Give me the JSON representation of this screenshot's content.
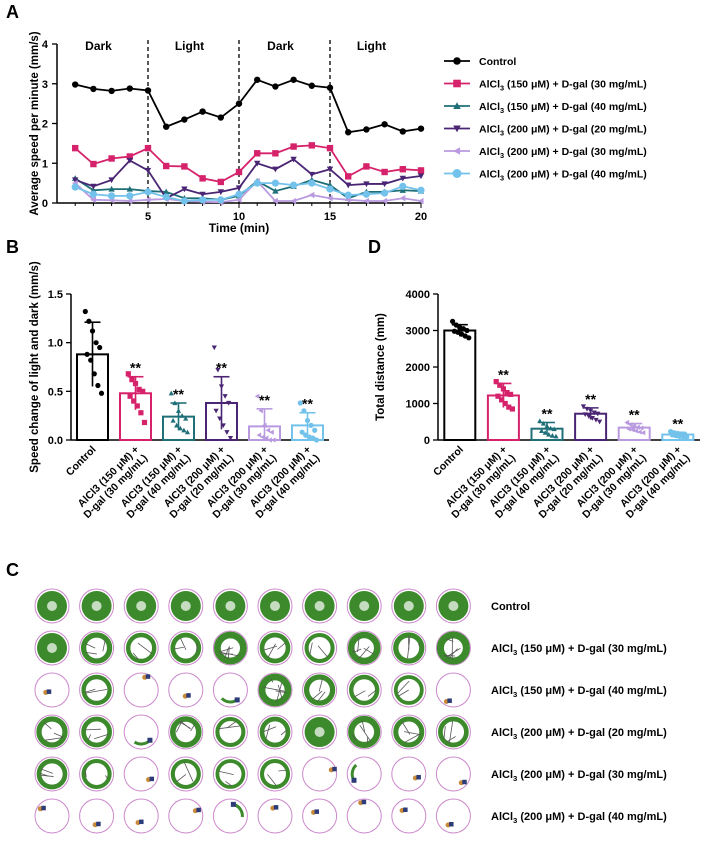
{
  "colors": {
    "control": "#000000",
    "al150_dg30": "#d6226a",
    "al150_dg40": "#1f6f78",
    "al200_dg20": "#4a2574",
    "al200_dg30": "#b99ae0",
    "al200_dg40": "#73c2ec",
    "arena_border": "#cc88cc",
    "tissue": "#3c8a2c"
  },
  "legend_groups": [
    {
      "key": "control",
      "prefix": "Control",
      "suffix": "",
      "marker": "circle"
    },
    {
      "key": "al150_dg30",
      "prefix": "AlCl",
      "suffix": " (150 μM) + D-gal (30 mg/mL)",
      "marker": "square"
    },
    {
      "key": "al150_dg40",
      "prefix": "AlCl",
      "suffix": " (150 μM) + D-gal (40 mg/mL)",
      "marker": "triangle-up"
    },
    {
      "key": "al200_dg20",
      "prefix": "AlCl",
      "suffix": " (200 μM) + D-gal (20 mg/mL)",
      "marker": "triangle-down"
    },
    {
      "key": "al200_dg30",
      "prefix": "AlCl",
      "suffix": " (200 μM) + D-gal (30 mg/mL)",
      "marker": "triangle-left"
    },
    {
      "key": "al200_dg40",
      "prefix": "AlCl",
      "suffix": " (200 μM) + D-gal (40 mg/mL)",
      "marker": "circle"
    }
  ],
  "chart_data": [
    {
      "panel": "A",
      "type": "line",
      "xlabel": "Time (min)",
      "ylabel": "Average speed per minute (mm/s)",
      "xlim": [
        0,
        20
      ],
      "ylim": [
        0,
        4
      ],
      "xticks": [
        "5",
        "10",
        "15",
        "20"
      ],
      "yticks": [
        "0",
        "1",
        "2",
        "3",
        "4"
      ],
      "phases": [
        "Dark",
        "Light",
        "Dark",
        "Light"
      ],
      "x": [
        1,
        2,
        3,
        4,
        5,
        6,
        7,
        8,
        9,
        10,
        11,
        12,
        13,
        14,
        15,
        16,
        17,
        18,
        19,
        20
      ],
      "series": [
        {
          "key": "control",
          "name": "Control",
          "values": [
            2.98,
            2.87,
            2.82,
            2.88,
            2.83,
            1.92,
            2.1,
            2.3,
            2.15,
            2.5,
            3.1,
            2.93,
            3.1,
            2.95,
            2.9,
            1.78,
            1.85,
            1.98,
            1.8,
            1.87
          ]
        },
        {
          "key": "al150_dg30",
          "name": "AlCl3 (150 μM) + D-gal (30 mg/mL)",
          "values": [
            1.38,
            0.98,
            1.12,
            1.17,
            1.38,
            0.93,
            0.92,
            0.62,
            0.53,
            0.78,
            1.25,
            1.25,
            1.42,
            1.45,
            1.38,
            0.67,
            0.92,
            0.78,
            0.85,
            0.82
          ]
        },
        {
          "key": "al150_dg40",
          "name": "AlCl3 (150 μM) + D-gal (40 mg/mL)",
          "values": [
            0.62,
            0.32,
            0.35,
            0.35,
            0.3,
            0.28,
            0.12,
            0.12,
            0.08,
            0.18,
            0.55,
            0.3,
            0.42,
            0.58,
            0.45,
            0.12,
            0.28,
            0.28,
            0.32,
            0.3
          ]
        },
        {
          "key": "al200_dg20",
          "name": "AlCl3 (200 μM) + D-gal (20 mg/mL)",
          "values": [
            0.58,
            0.42,
            0.58,
            1.07,
            0.82,
            0.12,
            0.35,
            0.22,
            0.28,
            0.38,
            1.0,
            0.85,
            1.1,
            0.72,
            0.85,
            0.45,
            0.48,
            0.48,
            0.62,
            0.68
          ]
        },
        {
          "key": "al200_dg30",
          "name": "AlCl3 (200 μM) + D-gal (30 mg/mL)",
          "values": [
            0.5,
            0.08,
            0.07,
            0.05,
            0.08,
            0.1,
            0.05,
            0.03,
            0.02,
            0.08,
            0.55,
            0.05,
            0.05,
            0.2,
            0.12,
            0.08,
            0.05,
            0.05,
            0.12,
            0.05
          ]
        },
        {
          "key": "al200_dg40",
          "name": "AlCl3 (200 μM) + D-gal (40 mg/mL)",
          "values": [
            0.4,
            0.22,
            0.18,
            0.18,
            0.28,
            0.15,
            0.05,
            0.08,
            0.08,
            0.22,
            0.5,
            0.5,
            0.45,
            0.5,
            0.35,
            0.2,
            0.22,
            0.25,
            0.42,
            0.32
          ]
        }
      ]
    },
    {
      "panel": "B",
      "type": "bar",
      "ylabel": "Speed change of light and dark (mm/s)",
      "ylim": [
        0,
        1.5
      ],
      "yticks": [
        "0.0",
        "0.5",
        "1.0",
        "1.5"
      ],
      "categories": [
        "Control",
        "AlCl3 (150 μM) + D-gal (30 mg/mL)",
        "AlCl3 (150 μM) + D-gal (40 mg/mL)",
        "AlCl3 (200 μM) + D-gal (20 mg/mL)",
        "AlCl3 (200 μM) + D-gal (30 mg/mL)",
        "AlCl3 (200 μM) + D-gal (40 mg/mL)"
      ],
      "keys": [
        "control",
        "al150_dg30",
        "al150_dg40",
        "al200_dg20",
        "al200_dg30",
        "al200_dg40"
      ],
      "values": [
        0.88,
        0.48,
        0.24,
        0.38,
        0.14,
        0.15
      ],
      "errors": [
        0.33,
        0.17,
        0.14,
        0.27,
        0.18,
        0.13
      ],
      "significance": [
        "",
        "**",
        "**",
        "**",
        "**",
        "**"
      ],
      "points": [
        [
          1.32,
          1.22,
          1.12,
          1.0,
          0.95,
          0.88,
          0.82,
          0.68,
          0.56,
          0.48
        ],
        [
          0.68,
          0.62,
          0.58,
          0.52,
          0.5,
          0.45,
          0.4,
          0.35,
          0.28,
          0.18
        ],
        [
          0.48,
          0.38,
          0.3,
          0.25,
          0.22,
          0.2,
          0.15,
          0.12,
          0.1,
          0.08
        ],
        [
          0.95,
          0.72,
          0.55,
          0.45,
          0.38,
          0.3,
          0.22,
          0.15,
          0.08,
          0.02
        ],
        [
          0.45,
          0.3,
          0.15,
          0.1,
          0.08,
          0.05,
          0.03,
          0.02,
          0.0,
          0.0
        ],
        [
          0.38,
          0.3,
          0.2,
          0.15,
          0.1,
          0.08,
          0.05,
          0.03,
          0.02,
          0.0
        ]
      ]
    },
    {
      "panel": "D",
      "type": "bar",
      "ylabel": "Total distance (mm)",
      "ylim": [
        0,
        4000
      ],
      "yticks": [
        "0",
        "1000",
        "2000",
        "3000",
        "4000"
      ],
      "categories": [
        "Control",
        "AlCl3 (150 μM) + D-gal (30 mg/mL)",
        "AlCl3 (150 μM) + D-gal (40 mg/mL)",
        "AlCl3 (200 μM) + D-gal (20 mg/mL)",
        "AlCl3 (200 μM) + D-gal (30 mg/mL)",
        "AlCl3 (200 μM) + D-gal (40 mg/mL)"
      ],
      "keys": [
        "control",
        "al150_dg30",
        "al150_dg40",
        "al200_dg20",
        "al200_dg30",
        "al200_dg40"
      ],
      "values": [
        3000,
        1220,
        310,
        720,
        340,
        150
      ],
      "errors": [
        160,
        330,
        170,
        160,
        110,
        60
      ],
      "significance": [
        "",
        "**",
        "**",
        "**",
        "**",
        "**"
      ],
      "points": [
        [
          3250,
          3150,
          3080,
          3050,
          3000,
          2980,
          2950,
          2900,
          2850,
          2800
        ],
        [
          1600,
          1500,
          1400,
          1300,
          1250,
          1200,
          1100,
          1000,
          900,
          850
        ],
        [
          520,
          450,
          380,
          320,
          300,
          250,
          200,
          150,
          120,
          100
        ],
        [
          920,
          850,
          800,
          750,
          720,
          700,
          650,
          600,
          550,
          500
        ],
        [
          480,
          420,
          380,
          350,
          330,
          300,
          280,
          250,
          220,
          200
        ],
        [
          230,
          200,
          180,
          160,
          150,
          140,
          120,
          100,
          90,
          80
        ]
      ]
    }
  ],
  "panel_c": {
    "columns": 10,
    "rows": [
      {
        "key": "control",
        "prefix": "Control",
        "suffix": "",
        "intensity": [
          1,
          1,
          1,
          1,
          1,
          1,
          1,
          1,
          1,
          1
        ]
      },
      {
        "key": "al150_dg30",
        "prefix": "AlCl",
        "suffix": " (150 μM) + D-gal (30 mg/mL)",
        "intensity": [
          0.95,
          0.55,
          0.4,
          0.45,
          0.8,
          0.45,
          0.35,
          0.75,
          0.55,
          0.85
        ]
      },
      {
        "key": "al150_dg40",
        "prefix": "AlCl",
        "suffix": " (150 μM) + D-gal (40 mg/mL)",
        "intensity": [
          0.05,
          0.4,
          0.03,
          0.03,
          0.15,
          0.8,
          0.55,
          0.4,
          0.3,
          0.03
        ]
      },
      {
        "key": "al200_dg20",
        "prefix": "AlCl",
        "suffix": " (200 μM) + D-gal (20 mg/mL)",
        "intensity": [
          0.55,
          0.45,
          0.15,
          0.6,
          0.35,
          0.45,
          0.9,
          0.7,
          0.5,
          0.45
        ]
      },
      {
        "key": "al200_dg30",
        "prefix": "AlCl",
        "suffix": " (200 μM) + D-gal (30 mg/mL)",
        "intensity": [
          0.45,
          0.35,
          0.05,
          0.35,
          0.3,
          0.35,
          0.03,
          0.2,
          0.03,
          0.05
        ]
      },
      {
        "key": "al200_dg40",
        "prefix": "AlCl",
        "suffix": " (200 μM) + D-gal (40 mg/mL)",
        "intensity": [
          0.02,
          0.05,
          0.05,
          0.03,
          0.12,
          0.02,
          0.05,
          0.03,
          0.03,
          0.02
        ]
      }
    ]
  },
  "labels": {
    "panel_a": "A",
    "panel_b": "B",
    "panel_c": "C",
    "panel_d": "D",
    "stat_mark": "**",
    "sub3": "3",
    "cat_b_line1": [
      "Control",
      "AlCl3 (150 μM) +",
      "AlCl3 (150 μM) +",
      "AlCl3 (200 μM) +",
      "AlCl3 (200 μM) +",
      "AlCl3 (200 μM) +"
    ],
    "cat_b_line2": [
      "",
      "D-gal (30 mg/mL)",
      "D-gal (40 mg/mL)",
      "D-gal (20 mg/mL)",
      "D-gal (30 mg/mL)",
      "D-gal (40 mg/mL)"
    ]
  }
}
